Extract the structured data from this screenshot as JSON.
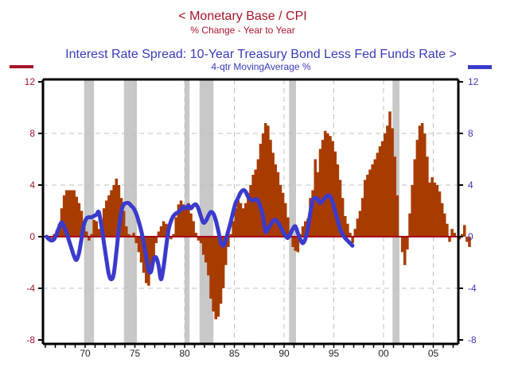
{
  "chart_data": {
    "type": "bar+line",
    "title_left": "<  Monetary Base / CPI",
    "subtitle_left": "% Change - Year to Year",
    "title_right": "Interest Rate Spread: 10-Year Treasury Bond Less Fed Funds Rate  >",
    "subtitle_right": "4-qtr MovingAverage     %",
    "colors": {
      "bars": "#a83c00",
      "line": "#3a3acc",
      "zero_line": "#a8001c",
      "recession": "#c8c8c8",
      "left_axis_text": "#a8142c",
      "right_axis_text": "#3a3ab8"
    },
    "ylim": [
      -8,
      12
    ],
    "yticks": [
      12,
      8,
      4,
      0,
      -4,
      -8
    ],
    "ytick_labels_left": [
      "12",
      "8",
      "4",
      "0",
      "-4",
      "-8"
    ],
    "ytick_labels_right": [
      "12",
      "8",
      "4",
      "0",
      "-4",
      "-8"
    ],
    "xlim": [
      1966.0,
      2007.5
    ],
    "xticks": [
      1970,
      1975,
      1980,
      1985,
      1990,
      1995,
      2000,
      2005
    ],
    "xtick_labels": [
      "70",
      "75",
      "80",
      "85",
      "90",
      "95",
      "00",
      "05"
    ],
    "recessions": [
      [
        1969.9,
        1970.9
      ],
      [
        1973.9,
        1975.2
      ],
      [
        1980.0,
        1980.5
      ],
      [
        1981.5,
        1982.9
      ],
      [
        1990.5,
        1991.2
      ],
      [
        2000.9,
        2001.6
      ]
    ],
    "grid": "dashed at major ticks",
    "series": [
      {
        "name": "Monetary Base / CPI (% Change YoY)",
        "axis": "left",
        "kind": "bar",
        "start": 1966.0,
        "step": 0.25,
        "values": [
          0.1,
          0.0,
          -0.1,
          0.2,
          0.5,
          1.0,
          2.2,
          3.2,
          3.6,
          3.6,
          3.6,
          3.6,
          3.1,
          2.6,
          2.0,
          1.2,
          0.4,
          -0.3,
          0.2,
          1.3,
          1.2,
          0.6,
          1.2,
          2.2,
          2.8,
          3.2,
          3.6,
          4.0,
          4.5,
          4.0,
          3.0,
          2.0,
          0.8,
          0.2,
          0.1,
          0.3,
          -0.5,
          -1.2,
          -2.0,
          -2.8,
          -3.6,
          -3.8,
          -2.6,
          -1.6,
          -0.5,
          0.4,
          0.8,
          1.2,
          1.0,
          0.3,
          -0.2,
          0.2,
          1.5,
          2.5,
          2.8,
          2.5,
          2.1,
          2.6,
          1.8,
          1.2,
          0.3,
          -0.3,
          -0.5,
          -1.4,
          -2.0,
          -3.0,
          -4.8,
          -5.8,
          -6.4,
          -6.2,
          -5.2,
          -4.0,
          -2.2,
          -0.8,
          0.2,
          1.2,
          2.2,
          2.8,
          2.6,
          2.2,
          2.6,
          3.4,
          4.0,
          4.8,
          5.2,
          6.0,
          7.2,
          8.0,
          8.8,
          8.6,
          7.5,
          6.5,
          5.6,
          5.0,
          4.0,
          3.4,
          2.6,
          1.5,
          0.0,
          -0.8,
          -1.1,
          -1.2,
          0.2,
          0.8,
          1.2,
          1.4,
          3.0,
          3.6,
          6.0,
          5.0,
          6.8,
          7.5,
          8.2,
          8.0,
          7.8,
          7.4,
          6.6,
          5.6,
          4.4,
          3.0,
          1.6,
          1.0,
          0.3,
          -0.5,
          0.6,
          1.4,
          2.0,
          3.0,
          4.4,
          4.8,
          5.2,
          5.6,
          6.0,
          6.5,
          7.0,
          7.4,
          8.0,
          8.6,
          9.7,
          8.4,
          6.2,
          3.2,
          0.0,
          -1.2,
          -2.2,
          -1.0,
          1.8,
          4.0,
          6.0,
          7.5,
          8.6,
          8.8,
          8.0,
          6.2,
          4.2,
          4.6,
          4.2,
          4.0,
          3.5,
          2.6,
          1.8,
          1.0,
          -0.4,
          0.6,
          0.3,
          0.0,
          -0.2,
          0.2,
          0.9,
          -0.4,
          -0.8
        ]
      },
      {
        "name": "Interest Rate Spread 4-qtr Moving Average (%)",
        "axis": "right",
        "kind": "line",
        "start": 1966.0,
        "step": 0.25,
        "values": [
          0.0,
          -0.2,
          -0.3,
          -0.2,
          0.2,
          0.7,
          1.1,
          0.8,
          0.3,
          -0.3,
          -0.9,
          -1.5,
          -1.8,
          -1.3,
          -0.2,
          0.9,
          1.4,
          1.5,
          1.5,
          1.6,
          1.7,
          1.9,
          0.9,
          -0.4,
          -1.7,
          -2.9,
          -3.3,
          -2.9,
          -1.3,
          0.5,
          1.9,
          2.5,
          2.6,
          2.6,
          2.4,
          2.2,
          1.8,
          1.2,
          0.5,
          -0.4,
          -1.5,
          -2.6,
          -2.7,
          -1.8,
          -1.6,
          -2.2,
          -3.3,
          -2.4,
          -0.9,
          0.5,
          1.2,
          1.6,
          1.8,
          1.9,
          2.1,
          2.3,
          2.2,
          2.4,
          2.2,
          2.4,
          2.5,
          2.2,
          1.6,
          1.1,
          1.2,
          1.6,
          1.9,
          1.8,
          1.3,
          0.5,
          -0.4,
          -0.7,
          -0.3,
          0.4,
          1.1,
          1.9,
          2.6,
          3.0,
          3.4,
          3.6,
          3.5,
          3.1,
          2.9,
          2.8,
          2.9,
          2.8,
          2.3,
          1.6,
          0.4,
          0.6,
          0.9,
          1.2,
          1.3,
          1.1,
          0.8,
          0.4,
          0.1,
          -0.1,
          0.2,
          0.6,
          0.8,
          0.3,
          -0.2,
          -0.5,
          -0.2,
          0.6,
          1.8,
          2.8,
          3.0,
          2.9,
          2.6,
          2.8,
          3.0,
          3.2,
          3.1,
          2.7,
          2.0,
          1.3,
          0.6,
          0.2,
          -0.1,
          -0.3,
          -0.5,
          -0.7
        ]
      }
    ]
  }
}
